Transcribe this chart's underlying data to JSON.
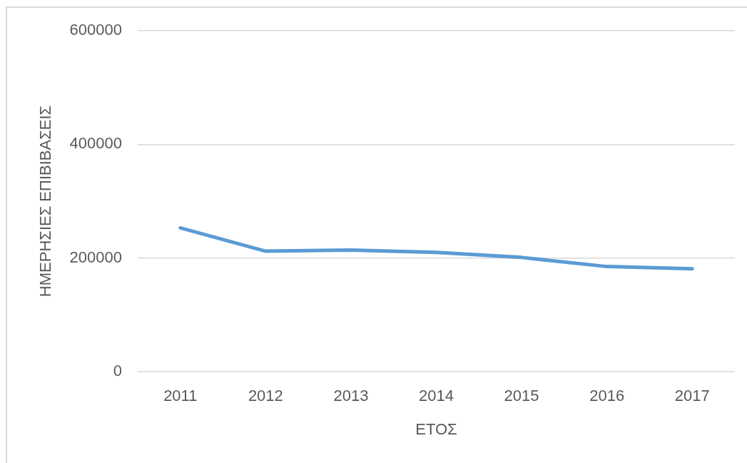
{
  "chart_data": {
    "type": "line",
    "xlabel": "ΕΤΟΣ",
    "ylabel": "ΗΜΕΡΗΣΙΕΣ ΕΠΙΒΙΒΑΣΕΙΣ",
    "categories": [
      "2011",
      "2012",
      "2013",
      "2014",
      "2015",
      "2016",
      "2017"
    ],
    "series": [
      {
        "color": "#5b9bd5",
        "values": [
          253000,
          212000,
          214000,
          210000,
          201000,
          185000,
          181000
        ]
      }
    ],
    "ylim": [
      0,
      600000
    ],
    "yticks": [
      0,
      200000,
      400000,
      600000
    ],
    "grid": "y",
    "marker": "none",
    "line_style": "solid"
  }
}
